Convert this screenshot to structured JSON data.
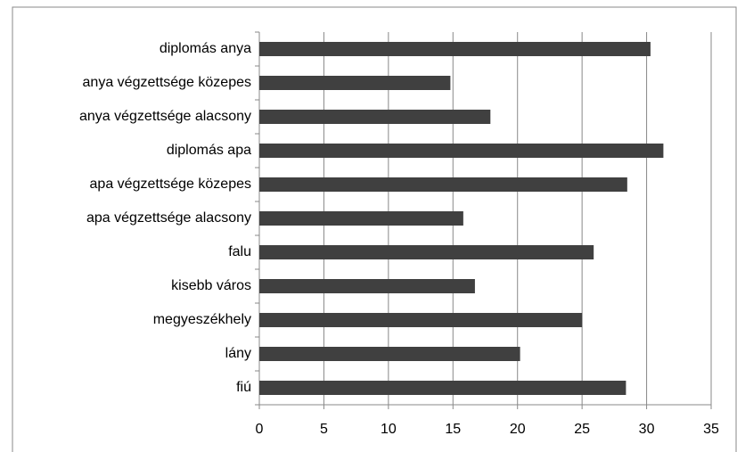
{
  "chart_data": {
    "type": "bar",
    "orientation": "horizontal",
    "categories": [
      "diplomás anya",
      "anya végzettsége közepes",
      "anya végzettsége alacsony",
      "diplomás apa",
      "apa végzettsége közepes",
      "apa végzettsége alacsony",
      "falu",
      "kisebb város",
      "megyeszékhely",
      "lány",
      "fiú"
    ],
    "values": [
      30.3,
      14.8,
      17.9,
      31.3,
      28.5,
      15.8,
      25.9,
      16.7,
      25,
      20.2,
      28.4
    ],
    "color": "#404040",
    "xlim": [
      0,
      35
    ],
    "xticks": [
      0,
      5,
      10,
      15,
      20,
      25,
      30,
      35
    ],
    "grid": true
  }
}
